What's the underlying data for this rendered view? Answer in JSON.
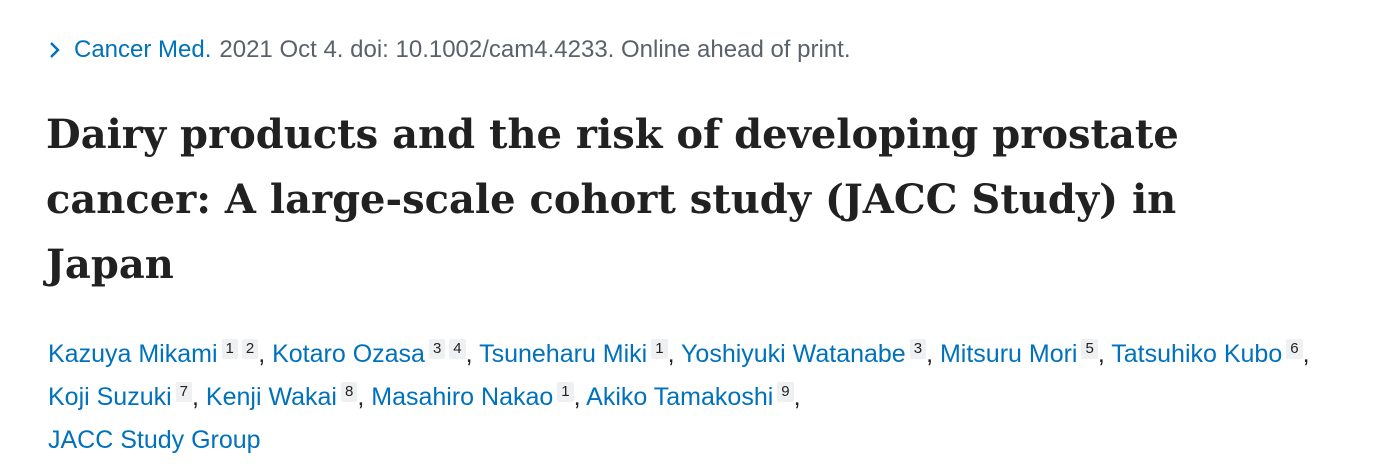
{
  "citation": {
    "journal": "Cancer Med.",
    "details": "2021 Oct 4. doi: 10.1002/cam4.4233. Online ahead of print."
  },
  "title": "Dairy products and the risk of developing prostate cancer: A large-scale cohort study (JACC Study) in Japan",
  "author_separator": ",",
  "authors": [
    {
      "name": "Kazuya Mikami",
      "affiliations": [
        "1",
        "2"
      ]
    },
    {
      "name": "Kotaro Ozasa",
      "affiliations": [
        "3",
        "4"
      ]
    },
    {
      "name": "Tsuneharu Miki",
      "affiliations": [
        "1"
      ]
    },
    {
      "name": "Yoshiyuki Watanabe",
      "affiliations": [
        "3"
      ]
    },
    {
      "name": "Mitsuru Mori",
      "affiliations": [
        "5"
      ]
    },
    {
      "name": "Tatsuhiko Kubo",
      "affiliations": [
        "6"
      ]
    },
    {
      "name": "Koji Suzuki",
      "affiliations": [
        "7"
      ]
    },
    {
      "name": "Kenji Wakai",
      "affiliations": [
        "8"
      ]
    },
    {
      "name": "Masahiro Nakao",
      "affiliations": [
        "1"
      ]
    },
    {
      "name": "Akiko Tamakoshi",
      "affiliations": [
        "9"
      ]
    },
    {
      "name": "JACC Study Group",
      "affiliations": []
    }
  ]
}
